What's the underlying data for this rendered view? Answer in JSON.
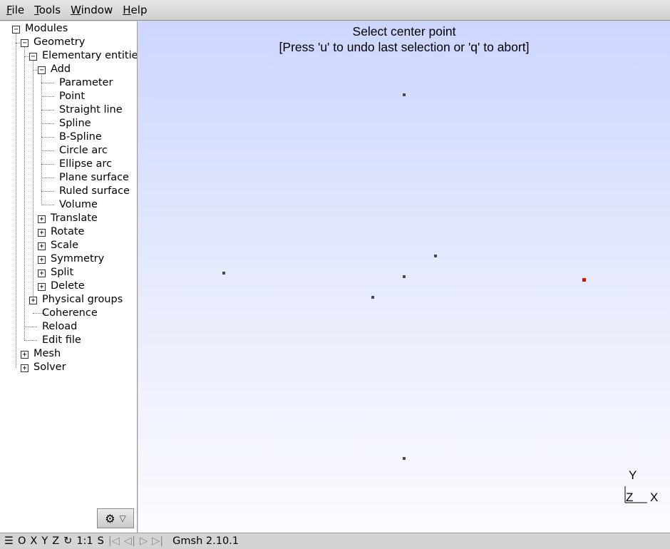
{
  "menu": {
    "file": "File",
    "tools": "Tools",
    "window": "Window",
    "help": "Help"
  },
  "tree": {
    "items": [
      {
        "label": "Modules",
        "toggle": "−"
      },
      {
        "label": "Geometry",
        "toggle": "−"
      },
      {
        "label": "Elementary entities",
        "toggle": "−"
      },
      {
        "label": "Add",
        "toggle": "−"
      },
      {
        "label": "Parameter"
      },
      {
        "label": "Point"
      },
      {
        "label": "Straight line"
      },
      {
        "label": "Spline"
      },
      {
        "label": "B-Spline"
      },
      {
        "label": "Circle arc"
      },
      {
        "label": "Ellipse arc"
      },
      {
        "label": "Plane surface"
      },
      {
        "label": "Ruled surface"
      },
      {
        "label": "Volume"
      },
      {
        "label": "Translate",
        "toggle": "+"
      },
      {
        "label": "Rotate",
        "toggle": "+"
      },
      {
        "label": "Scale",
        "toggle": "+"
      },
      {
        "label": "Symmetry",
        "toggle": "+"
      },
      {
        "label": "Split",
        "toggle": "+"
      },
      {
        "label": "Delete",
        "toggle": "+"
      },
      {
        "label": "Physical groups",
        "toggle": "+"
      },
      {
        "label": "Coherence"
      },
      {
        "label": "Reload"
      },
      {
        "label": "Edit file"
      },
      {
        "label": "Mesh",
        "toggle": "+"
      },
      {
        "label": "Solver",
        "toggle": "+"
      }
    ]
  },
  "viewport": {
    "message_line1": "Select center point",
    "message_line2": "[Press 'u' to undo last selection or 'q' to abort]",
    "axes": {
      "y": "Y",
      "z": "Z",
      "x": "X"
    },
    "point_color": "#4a4a4a",
    "selected_color": "#ff0000"
  },
  "gear": {
    "icon": "gear-icon",
    "arrow": "▽",
    "glyph": "⚙"
  },
  "status": {
    "menu_glyph": "☰",
    "o": "O",
    "x": "X",
    "y": "Y",
    "z": "Z",
    "rotate_glyph": "↻",
    "scale": "1:1",
    "s": "S",
    "first": "|◁",
    "prev": "◁|",
    "play": "▷",
    "last": "▷|",
    "text": "Gmsh 2.10.1"
  }
}
